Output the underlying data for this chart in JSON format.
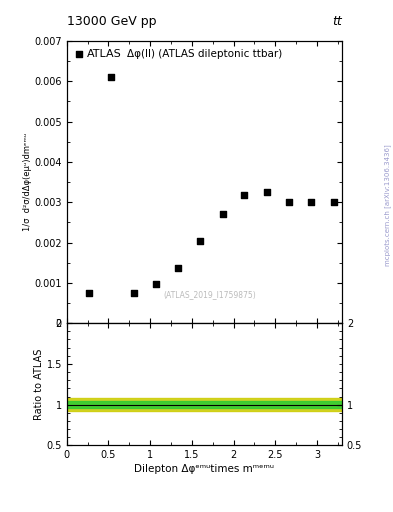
{
  "title_top": "13000 GeV pp",
  "title_right": "tt",
  "inner_title": "Δφ(ll) (ATLAS dileptonic ttbar)",
  "legend_label": "ATLAS",
  "watermark": "(ATLAS_2019_I1759875)",
  "side_label": "mcplots.cern.ch [arXiv:1306.3436]",
  "xlabel": "Dilepton Δφᵉᵐᵘtimes mᵐᵉᵐᵘ",
  "ylabel": "1/σ  d²σ/dΔφ(eμᵘ)dmᵉᵐᵘ",
  "ratio_ylabel": "Ratio to ATLAS",
  "scatter_x": [
    0.27,
    0.53,
    0.8,
    1.07,
    1.33,
    1.6,
    1.87,
    2.13,
    2.4,
    2.67,
    2.93,
    3.2
  ],
  "scatter_y": [
    0.00075,
    0.0061,
    0.00075,
    0.00098,
    0.00138,
    0.00205,
    0.00272,
    0.00318,
    0.00325,
    0.003,
    0.003,
    0.003
  ],
  "xlim": [
    0,
    3.3
  ],
  "ylim_main": [
    0,
    0.007
  ],
  "ylim_ratio": [
    0.5,
    2.0
  ],
  "ratio_band_green": [
    0.96,
    1.04
  ],
  "ratio_band_yellow": [
    0.92,
    1.08
  ],
  "bg_color": "#ffffff",
  "data_color": "#000000",
  "marker": "s",
  "marker_size": 5,
  "green_color": "#33cc33",
  "yellow_color": "#cccc00",
  "title_color": "#000000",
  "side_label_color": "#9999cc"
}
